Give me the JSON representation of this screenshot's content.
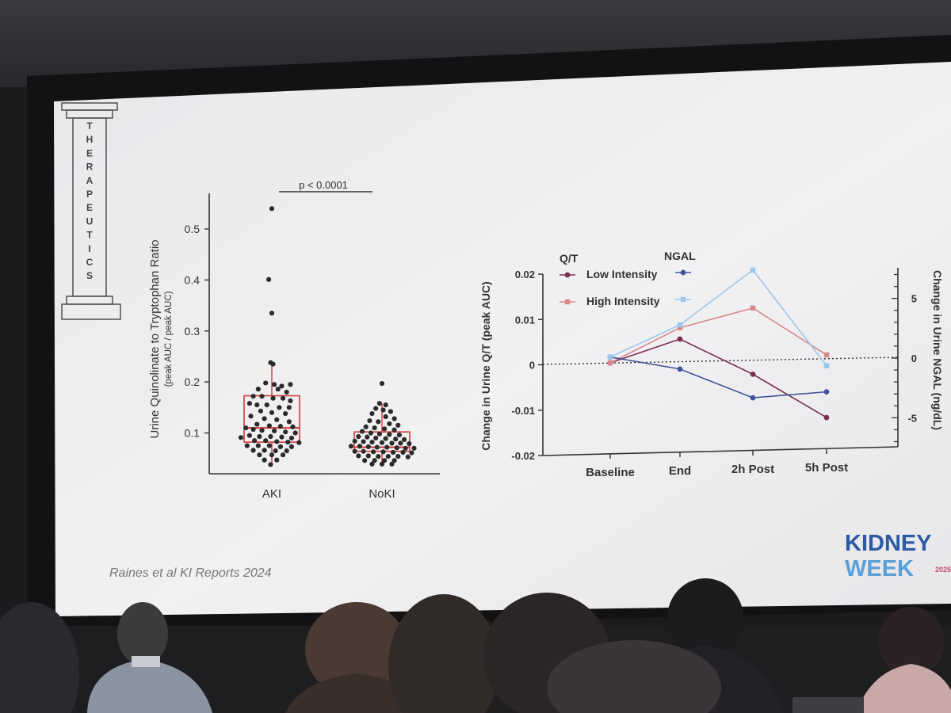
{
  "pillar": {
    "letters": [
      "T",
      "H",
      "E",
      "R",
      "A",
      "P",
      "E",
      "U",
      "T",
      "I",
      "C",
      "S"
    ]
  },
  "citation": "Raines et al KI Reports 2024",
  "logo": {
    "line1": "KIDNEY",
    "line2": "WEEK",
    "year": "2025"
  },
  "colors": {
    "low_qt": "#7a2f50",
    "high_qt": "#d88888",
    "low_ngal": "#42549a",
    "high_ngal": "#9cc6ea",
    "box": "#d23a3a",
    "dot": "#2b2b2b",
    "logo_blue": "#2d5aa6",
    "logo_light": "#5aa0d8"
  },
  "chart_data": [
    {
      "type": "scatter",
      "title": "",
      "ylabel": "Urine Quinolinate to Tryptophan Ratio",
      "ylabel2": "(peak AUC / peak AUC)",
      "categories": [
        "AKI",
        "NoKI"
      ],
      "yticks": [
        "0.1",
        "0.2",
        "0.3",
        "0.4",
        "0.5"
      ],
      "ylim": [
        0.02,
        0.57
      ],
      "annotation": "p < 0.0001",
      "boxes": [
        {
          "group": "AKI",
          "q1": 0.082,
          "median": 0.11,
          "q3": 0.173,
          "whisker_low": 0.04,
          "whisker_high": 0.233
        },
        {
          "group": "NoKI",
          "q1": 0.064,
          "median": 0.072,
          "q3": 0.102,
          "whisker_low": 0.04,
          "whisker_high": 0.158
        }
      ],
      "series": [
        {
          "group": "AKI",
          "points": [
            [
              0.0,
              0.54
            ],
            [
              -0.05,
              0.401
            ],
            [
              0.0,
              0.335
            ],
            [
              -0.02,
              0.238
            ],
            [
              0.02,
              0.235
            ],
            [
              -0.1,
              0.198
            ],
            [
              0.04,
              0.195
            ],
            [
              0.16,
              0.192
            ],
            [
              0.3,
              0.195
            ],
            [
              -0.22,
              0.186
            ],
            [
              0.1,
              0.186
            ],
            [
              0.24,
              0.18
            ],
            [
              -0.3,
              0.172
            ],
            [
              -0.16,
              0.172
            ],
            [
              0.02,
              0.168
            ],
            [
              0.18,
              0.168
            ],
            [
              0.3,
              0.163
            ],
            [
              -0.36,
              0.158
            ],
            [
              -0.24,
              0.155
            ],
            [
              -0.08,
              0.155
            ],
            [
              0.12,
              0.15
            ],
            [
              0.28,
              0.15
            ],
            [
              -0.18,
              0.143
            ],
            [
              0.0,
              0.14
            ],
            [
              0.22,
              0.138
            ],
            [
              -0.34,
              0.133
            ],
            [
              -0.12,
              0.128
            ],
            [
              0.08,
              0.126
            ],
            [
              0.28,
              0.122
            ],
            [
              -0.24,
              0.117
            ],
            [
              -0.04,
              0.114
            ],
            [
              0.14,
              0.113
            ],
            [
              0.34,
              0.112
            ],
            [
              -0.42,
              0.11
            ],
            [
              -0.3,
              0.107
            ],
            [
              -0.16,
              0.105
            ],
            [
              0.04,
              0.104
            ],
            [
              0.22,
              0.102
            ],
            [
              0.38,
              0.1
            ],
            [
              -0.36,
              0.095
            ],
            [
              -0.2,
              0.093
            ],
            [
              -0.02,
              0.093
            ],
            [
              0.16,
              0.092
            ],
            [
              0.32,
              0.09
            ],
            [
              -0.5,
              0.091
            ],
            [
              -0.28,
              0.085
            ],
            [
              -0.1,
              0.085
            ],
            [
              0.08,
              0.083
            ],
            [
              0.26,
              0.082
            ],
            [
              0.44,
              0.081
            ],
            [
              -0.4,
              0.075
            ],
            [
              -0.22,
              0.075
            ],
            [
              -0.04,
              0.075
            ],
            [
              0.14,
              0.073
            ],
            [
              0.32,
              0.073
            ],
            [
              -0.3,
              0.066
            ],
            [
              -0.12,
              0.066
            ],
            [
              0.06,
              0.065
            ],
            [
              0.24,
              0.065
            ],
            [
              -0.2,
              0.057
            ],
            [
              0.0,
              0.057
            ],
            [
              0.18,
              0.057
            ],
            [
              -0.12,
              0.047
            ],
            [
              0.08,
              0.047
            ],
            [
              -0.02,
              0.038
            ]
          ]
        },
        {
          "group": "NoKI",
          "points": [
            [
              0.0,
              0.197
            ],
            [
              -0.04,
              0.158
            ],
            [
              0.06,
              0.155
            ],
            [
              -0.1,
              0.148
            ],
            [
              0.02,
              0.145
            ],
            [
              0.14,
              0.142
            ],
            [
              -0.16,
              0.138
            ],
            [
              0.06,
              0.132
            ],
            [
              0.2,
              0.128
            ],
            [
              -0.2,
              0.124
            ],
            [
              -0.06,
              0.122
            ],
            [
              0.12,
              0.118
            ],
            [
              0.26,
              0.115
            ],
            [
              -0.26,
              0.112
            ],
            [
              -0.12,
              0.11
            ],
            [
              0.04,
              0.108
            ],
            [
              0.2,
              0.106
            ],
            [
              -0.32,
              0.103
            ],
            [
              -0.18,
              0.1
            ],
            [
              -0.04,
              0.098
            ],
            [
              0.12,
              0.097
            ],
            [
              0.28,
              0.096
            ],
            [
              -0.38,
              0.093
            ],
            [
              -0.24,
              0.092
            ],
            [
              -0.1,
              0.09
            ],
            [
              0.06,
              0.089
            ],
            [
              0.22,
              0.088
            ],
            [
              0.36,
              0.087
            ],
            [
              -0.44,
              0.084
            ],
            [
              -0.3,
              0.083
            ],
            [
              -0.16,
              0.082
            ],
            [
              0.0,
              0.081
            ],
            [
              0.16,
              0.08
            ],
            [
              0.3,
              0.08
            ],
            [
              0.44,
              0.079
            ],
            [
              -0.5,
              0.074
            ],
            [
              -0.36,
              0.074
            ],
            [
              -0.22,
              0.073
            ],
            [
              -0.08,
              0.072
            ],
            [
              0.08,
              0.072
            ],
            [
              0.24,
              0.071
            ],
            [
              0.38,
              0.07
            ],
            [
              0.52,
              0.07
            ],
            [
              -0.44,
              0.064
            ],
            [
              -0.3,
              0.064
            ],
            [
              -0.14,
              0.063
            ],
            [
              0.02,
              0.063
            ],
            [
              0.18,
              0.062
            ],
            [
              0.34,
              0.062
            ],
            [
              0.48,
              0.061
            ],
            [
              -0.38,
              0.055
            ],
            [
              -0.22,
              0.055
            ],
            [
              -0.06,
              0.054
            ],
            [
              0.1,
              0.054
            ],
            [
              0.26,
              0.054
            ],
            [
              0.42,
              0.053
            ],
            [
              -0.28,
              0.046
            ],
            [
              -0.12,
              0.046
            ],
            [
              0.04,
              0.046
            ],
            [
              0.2,
              0.046
            ],
            [
              -0.16,
              0.039
            ],
            [
              0.0,
              0.039
            ],
            [
              0.16,
              0.039
            ]
          ]
        }
      ]
    },
    {
      "type": "line",
      "title": "",
      "ylabel": "Change in Urine Q/T (peak AUC)",
      "y2label": "Change in Urine NGAL (ng/dL)",
      "categories": [
        "Baseline",
        "End",
        "2h Post",
        "5h Post"
      ],
      "yticks": [
        "-0.02",
        "-0.01",
        "0",
        "0.01",
        "0.02"
      ],
      "y2ticks": [
        "-5",
        "0",
        "5"
      ],
      "ylim": [
        -0.02,
        0.02
      ],
      "y2lim": [
        -7.5,
        7.5
      ],
      "legend_headers": {
        "qt": "Q/T",
        "ngal": "NGAL"
      },
      "legend_labels": [
        "Low Intensity",
        "High Intensity"
      ],
      "series": [
        {
          "name": "Low Intensity",
          "group": "Q/T",
          "axis": "left",
          "marker": "circle",
          "values": [
            0.0002,
            0.0052,
            -0.0028,
            -0.0126
          ]
        },
        {
          "name": "High Intensity",
          "group": "Q/T",
          "axis": "left",
          "marker": "square",
          "values": [
            0.0002,
            0.0077,
            0.0118,
            0.0012
          ]
        },
        {
          "name": "Low Intensity",
          "group": "NGAL",
          "axis": "right",
          "marker": "circle",
          "values": [
            0.0,
            -1.1,
            -3.6,
            -3.2
          ]
        },
        {
          "name": "High Intensity",
          "group": "NGAL",
          "axis": "right",
          "marker": "square",
          "values": [
            0.0,
            2.6,
            7.1,
            -1.0
          ]
        }
      ]
    }
  ]
}
